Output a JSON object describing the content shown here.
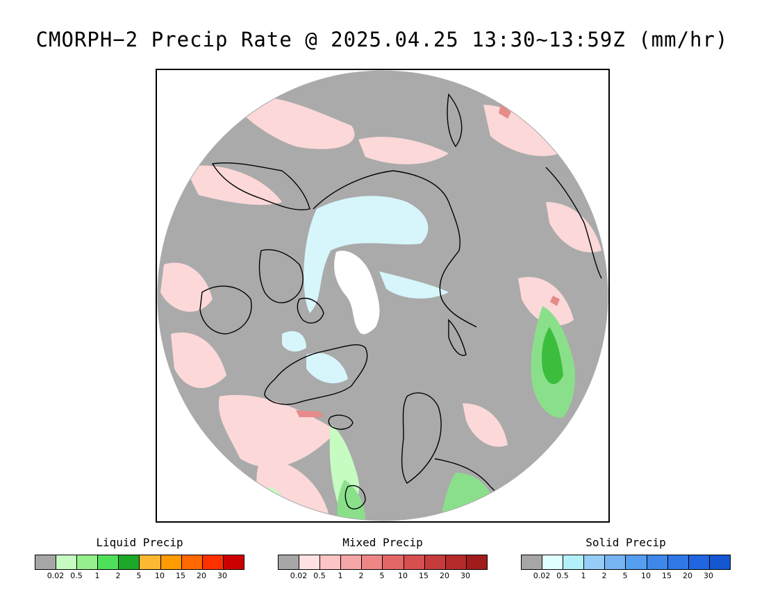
{
  "title": "CMORPH−2 Precip Rate @ 2025.04.25 13:30~13:59Z (mm/hr)",
  "map": {
    "projection": "north-polar-stereographic",
    "land_or_no_precip_color": "#aaaaaa",
    "frame_color": "#000000",
    "coastline_color": "#000000"
  },
  "legends": {
    "liquid": {
      "title": "Liquid Precip",
      "colors": [
        "#a6a6a6",
        "#c6fbc2",
        "#96f08c",
        "#4fe05a",
        "#1ca92a",
        "#fdb833",
        "#ff9a00",
        "#ff6800",
        "#ff3000",
        "#cc0000"
      ],
      "ticks": [
        "0.02",
        "0.5",
        "1",
        "2",
        "5",
        "10",
        "15",
        "20",
        "30"
      ]
    },
    "mixed": {
      "title": "Mixed Precip",
      "colors": [
        "#a6a6a6",
        "#ffe1e1",
        "#fcc4c4",
        "#f5a6a6",
        "#ee8686",
        "#e46767",
        "#d84f4f",
        "#c63c3c",
        "#b52a2a",
        "#a21c1c"
      ],
      "ticks": [
        "0.02",
        "0.5",
        "1",
        "2",
        "5",
        "10",
        "15",
        "20",
        "30"
      ]
    },
    "solid": {
      "title": "Solid Precip",
      "colors": [
        "#a6a6a6",
        "#e0ffff",
        "#b3f0fa",
        "#95cdf7",
        "#76b4f2",
        "#559ef0",
        "#3e88ea",
        "#2f78e6",
        "#2166e0",
        "#1457d0"
      ],
      "ticks": [
        "0.02",
        "0.5",
        "1",
        "2",
        "5",
        "10",
        "15",
        "20",
        "30"
      ]
    }
  }
}
